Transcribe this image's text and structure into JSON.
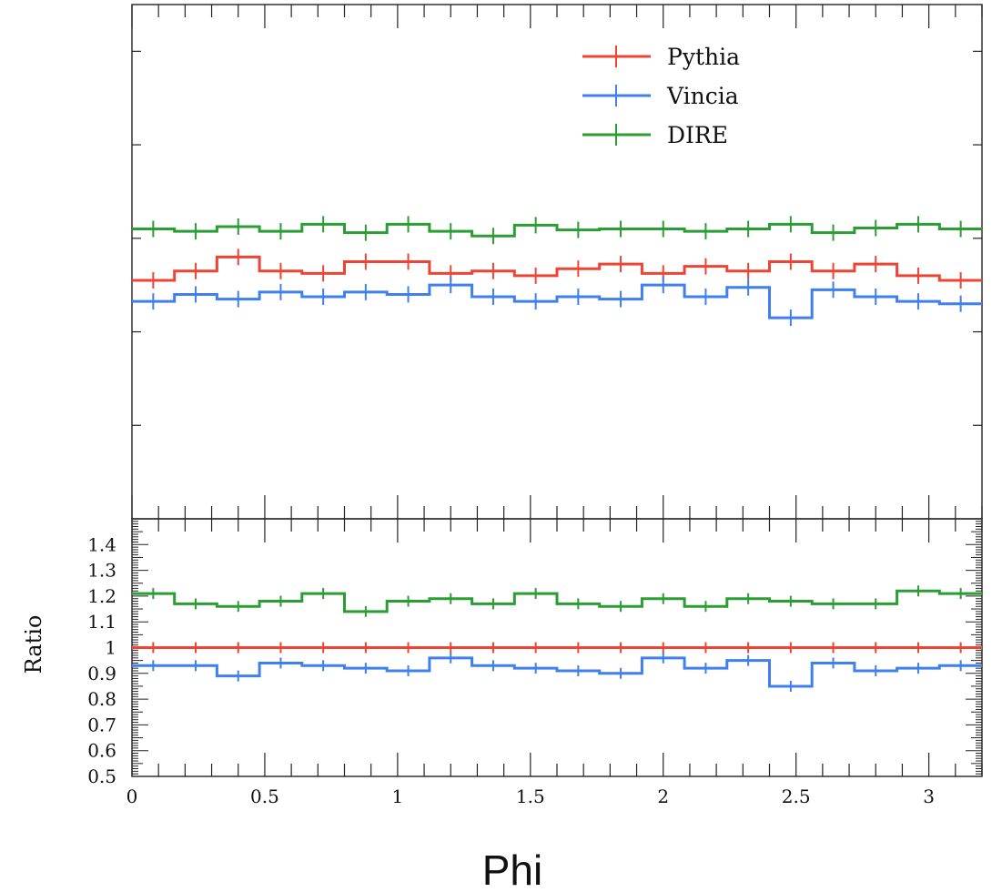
{
  "chart_data": {
    "type": "line",
    "xlabel": "Phi",
    "xlim": [
      0,
      3.2
    ],
    "x_ticks": [
      "0",
      "0.5",
      "1",
      "1.5",
      "2",
      "2.5",
      "3"
    ],
    "x_tick_values": [
      0,
      0.5,
      1,
      1.5,
      2,
      2.5,
      3
    ],
    "bin_edges": [
      0,
      0.16,
      0.32,
      0.48,
      0.64,
      0.8,
      0.96,
      1.12,
      1.28,
      1.44,
      1.6,
      1.76,
      1.92,
      2.08,
      2.24,
      2.4,
      2.56,
      2.72,
      2.88,
      3.04,
      3.2
    ],
    "legend_position": "top-right",
    "legend": [
      "Pythia",
      "Vincia",
      "DIRE"
    ],
    "main_panel": {
      "ylabel": "",
      "y_tick_labels_visible": false,
      "ylim": [
        0,
        1.1
      ],
      "series": [
        {
          "name": "Pythia",
          "color": "#ee4433",
          "values": [
            0.51,
            0.53,
            0.56,
            0.53,
            0.525,
            0.55,
            0.55,
            0.525,
            0.53,
            0.52,
            0.535,
            0.545,
            0.525,
            0.54,
            0.53,
            0.55,
            0.53,
            0.545,
            0.52,
            0.51
          ]
        },
        {
          "name": "Vincia",
          "color": "#3f7fee",
          "values": [
            0.465,
            0.48,
            0.47,
            0.485,
            0.475,
            0.485,
            0.48,
            0.5,
            0.475,
            0.465,
            0.475,
            0.47,
            0.5,
            0.475,
            0.495,
            0.43,
            0.49,
            0.475,
            0.465,
            0.46
          ]
        },
        {
          "name": "DIRE",
          "color": "#2a9d33",
          "values": [
            0.62,
            0.615,
            0.625,
            0.615,
            0.63,
            0.612,
            0.63,
            0.615,
            0.605,
            0.628,
            0.618,
            0.62,
            0.62,
            0.615,
            0.62,
            0.63,
            0.612,
            0.622,
            0.63,
            0.62
          ]
        }
      ]
    },
    "ratio_panel": {
      "ylabel": "Ratio",
      "ylim": [
        0.5,
        1.5
      ],
      "y_ticks": [
        "0.5",
        "0.6",
        "0.7",
        "0.8",
        "0.9",
        "1",
        "1.1",
        "1.2",
        "1.3",
        "1.4"
      ],
      "y_tick_values": [
        0.5,
        0.6,
        0.7,
        0.8,
        0.9,
        1.0,
        1.1,
        1.2,
        1.3,
        1.4
      ],
      "series": [
        {
          "name": "Pythia",
          "color": "#ee4433",
          "values": [
            1,
            1,
            1,
            1,
            1,
            1,
            1,
            1,
            1,
            1,
            1,
            1,
            1,
            1,
            1,
            1,
            1,
            1,
            1,
            1
          ]
        },
        {
          "name": "Vincia",
          "color": "#3f7fee",
          "values": [
            0.93,
            0.93,
            0.89,
            0.94,
            0.93,
            0.92,
            0.91,
            0.96,
            0.93,
            0.92,
            0.91,
            0.9,
            0.96,
            0.92,
            0.95,
            0.85,
            0.94,
            0.91,
            0.92,
            0.93
          ]
        },
        {
          "name": "DIRE",
          "color": "#2a9d33",
          "values": [
            1.21,
            1.17,
            1.16,
            1.18,
            1.21,
            1.14,
            1.18,
            1.19,
            1.17,
            1.21,
            1.17,
            1.16,
            1.19,
            1.16,
            1.19,
            1.18,
            1.17,
            1.17,
            1.22,
            1.21
          ]
        }
      ]
    }
  }
}
